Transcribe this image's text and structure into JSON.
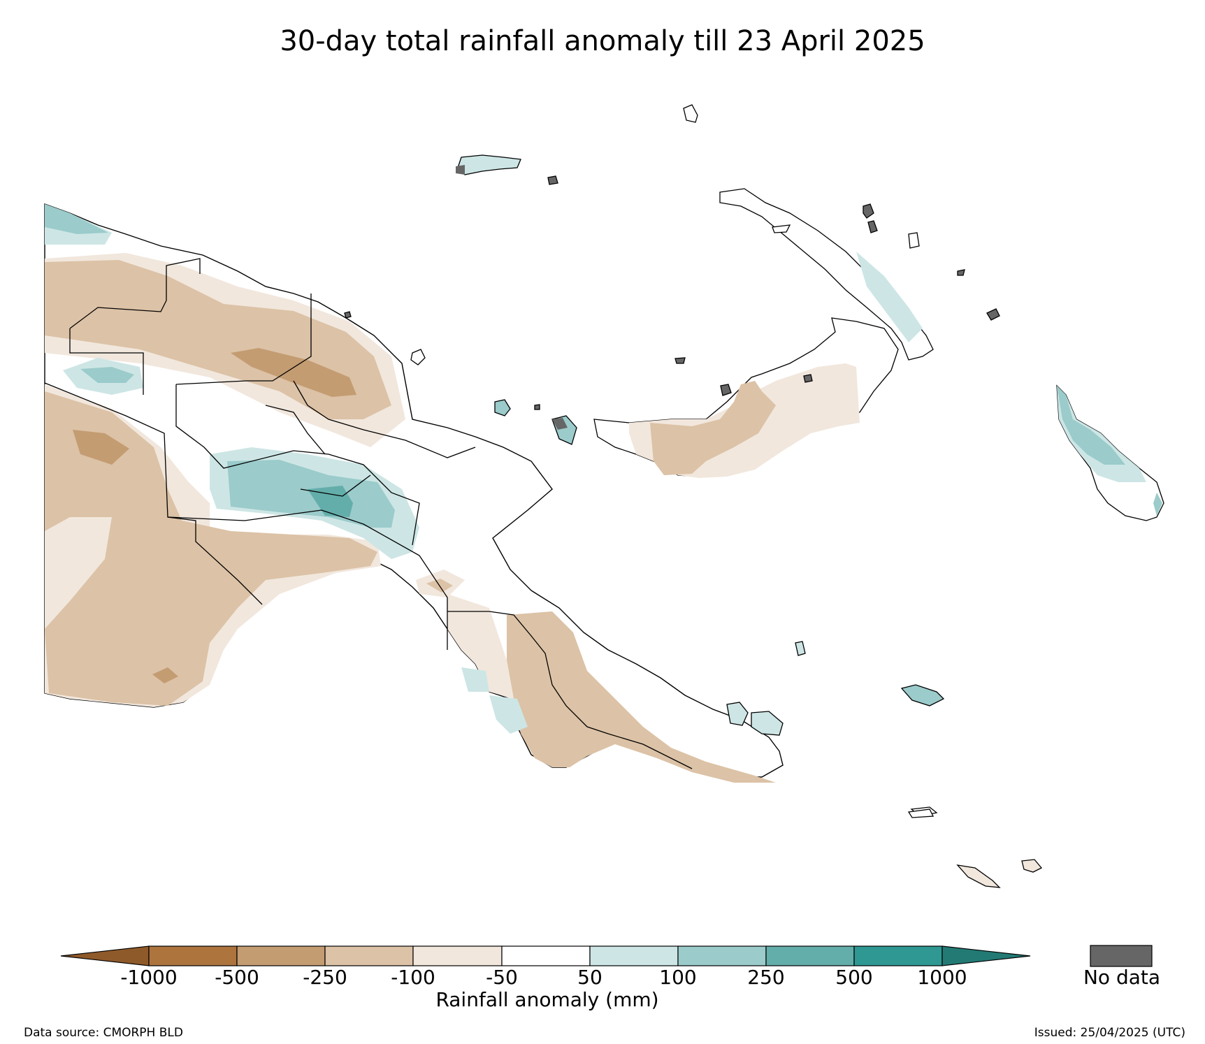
{
  "title": "30-day total rainfall anomaly till 23 April 2025",
  "colorbar": {
    "label": "Rainfall anomaly (mm)",
    "ticks": [
      "-1000",
      "-500",
      "-250",
      "-100",
      "-50",
      "50",
      "100",
      "250",
      "500",
      "1000"
    ],
    "colors": [
      "#8f5a2a",
      "#ad743e",
      "#c49c72",
      "#dcc2a6",
      "#f1e7dd",
      "#ffffff",
      "#cde6e5",
      "#9bcbcb",
      "#63aeab",
      "#2f9893",
      "#237a74"
    ],
    "nodata_label": "No data",
    "nodata_color": "#666666"
  },
  "footer": {
    "source": "Data source: CMORPH BLD",
    "issued": "Issued: 25/04/2025 (UTC)"
  }
}
